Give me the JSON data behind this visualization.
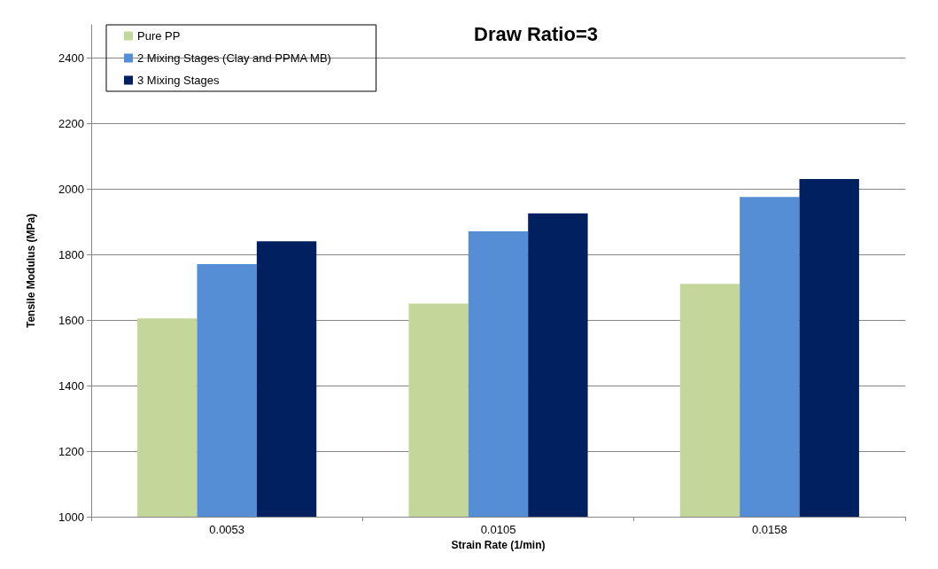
{
  "chart_data": {
    "type": "bar",
    "title": "Draw Ratio=3",
    "xlabel": "Strain Rate (1/min)",
    "ylabel": "Tensile Modulus (MPa)",
    "categories": [
      "0.0053",
      "0.0105",
      "0.0158"
    ],
    "series": [
      {
        "name": "Pure PP",
        "color": "#c4d79b",
        "values": [
          1605,
          1650,
          1710
        ]
      },
      {
        "name": "2 Mixing Stages (Clay and PPMA MB)",
        "color": "#558ed5",
        "values": [
          1770,
          1870,
          1975
        ]
      },
      {
        "name": "3 Mixing Stages",
        "color": "#002060",
        "values": [
          1840,
          1925,
          2030
        ]
      }
    ],
    "ylim": [
      1000,
      2500
    ],
    "yticks": [
      1000,
      1200,
      1400,
      1600,
      1800,
      2000,
      2200,
      2400
    ],
    "grid": "y",
    "legend": "top left"
  }
}
